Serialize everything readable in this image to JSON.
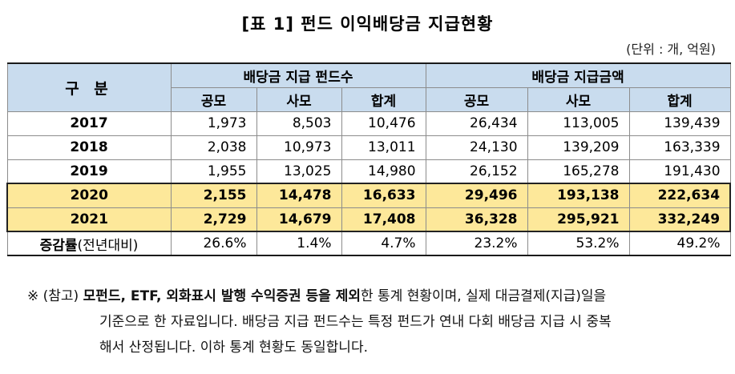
{
  "title": "[표 1] 펀드 이익배당금 지급현황",
  "unit": "(단위 : 개, 억원)",
  "table": {
    "header_category": "구 분",
    "group1": "배당금 지급 펀드수",
    "group2": "배당금 지급금액",
    "sub": [
      "공모",
      "사모",
      "합계",
      "공모",
      "사모",
      "합계"
    ],
    "rows": [
      {
        "year": "2017",
        "values": [
          "1,973",
          "8,503",
          "10,476",
          "26,434",
          "113,005",
          "139,439"
        ]
      },
      {
        "year": "2018",
        "values": [
          "2,038",
          "10,973",
          "13,011",
          "24,130",
          "139,209",
          "163,339"
        ]
      },
      {
        "year": "2019",
        "values": [
          "1,955",
          "13,025",
          "14,980",
          "26,152",
          "165,278",
          "191,430"
        ]
      },
      {
        "year": "2020",
        "values": [
          "2,155",
          "14,478",
          "16,633",
          "29,496",
          "193,138",
          "222,634"
        ]
      },
      {
        "year": "2021",
        "values": [
          "2,729",
          "14,679",
          "17,408",
          "36,328",
          "295,921",
          "332,249"
        ]
      }
    ],
    "change_label_bold": "증감률",
    "change_label_rest": "(전년대비)",
    "change_values": [
      "26.6%",
      "1.4%",
      "4.7%",
      "23.2%",
      "53.2%",
      "49.2%"
    ]
  },
  "note": {
    "marker": "※ (참고)",
    "bold": "모펀드, ETF, 외화표시 발행 수익증권 등을 제외",
    "line1_rest": "한 통계 현황이며, 실제 대금결제(지급)일을",
    "line2": "기준으로 한 자료입니다. 배당금 지급 펀드수는 특정 펀드가 연내 다회 배당금 지급 시 중복",
    "line3": "해서 산정됩니다. 이하 통계 현황도 동일합니다."
  }
}
